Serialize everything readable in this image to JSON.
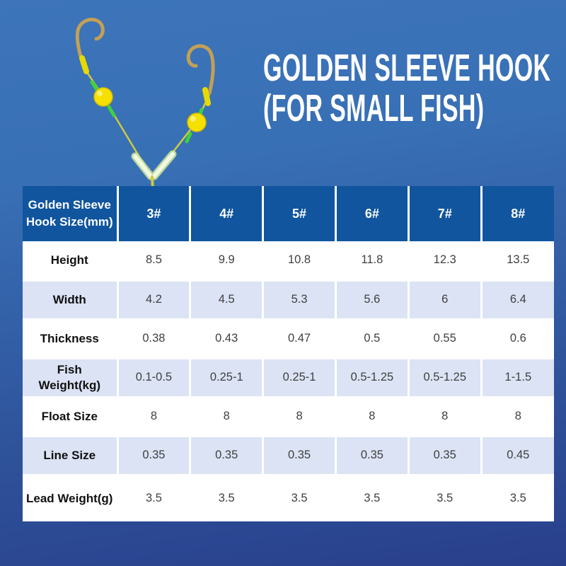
{
  "title": {
    "line1": "GOLDEN SLEEVE HOOK",
    "line2": "(FOR SMALL FISH)"
  },
  "illustration": {
    "description": "Two-hook golden sleeve fishing rig with yellow bait beads, green stops and luminous V tube"
  },
  "table": {
    "corner_label": "Golden Sleeve Hook Size(mm)",
    "columns": [
      "3#",
      "4#",
      "5#",
      "6#",
      "7#",
      "8#"
    ],
    "rows": [
      {
        "label": "Height",
        "values": [
          "8.5",
          "9.9",
          "10.8",
          "11.8",
          "12.3",
          "13.5"
        ]
      },
      {
        "label": "Width",
        "values": [
          "4.2",
          "4.5",
          "5.3",
          "5.6",
          "6",
          "6.4"
        ]
      },
      {
        "label": "Thickness",
        "values": [
          "0.38",
          "0.43",
          "0.47",
          "0.5",
          "0.55",
          "0.6"
        ]
      },
      {
        "label": "Fish Weight(kg)",
        "values": [
          "0.1-0.5",
          "0.25-1",
          "0.25-1",
          "0.5-1.25",
          "0.5-1.25",
          "1-1.5"
        ]
      },
      {
        "label": "Float Size",
        "values": [
          "8",
          "8",
          "8",
          "8",
          "8",
          "8"
        ]
      },
      {
        "label": "Line Size",
        "values": [
          "0.35",
          "0.35",
          "0.35",
          "0.35",
          "0.35",
          "0.45"
        ]
      },
      {
        "label": "Lead Weight(g)",
        "values": [
          "3.5",
          "3.5",
          "3.5",
          "3.5",
          "3.5",
          "3.5"
        ]
      }
    ]
  },
  "chart_data": {
    "type": "table",
    "title": "GOLDEN SLEEVE HOOK (FOR SMALL FISH)",
    "corner_label": "Golden Sleeve Hook Size(mm)",
    "columns": [
      "3#",
      "4#",
      "5#",
      "6#",
      "7#",
      "8#"
    ],
    "rows": [
      {
        "label": "Height",
        "values": [
          "8.5",
          "9.9",
          "10.8",
          "11.8",
          "12.3",
          "13.5"
        ]
      },
      {
        "label": "Width",
        "values": [
          "4.2",
          "4.5",
          "5.3",
          "5.6",
          "6",
          "6.4"
        ]
      },
      {
        "label": "Thickness",
        "values": [
          "0.38",
          "0.43",
          "0.47",
          "0.5",
          "0.55",
          "0.6"
        ]
      },
      {
        "label": "Fish Weight(kg)",
        "values": [
          "0.1-0.5",
          "0.25-1",
          "0.25-1",
          "0.5-1.25",
          "0.5-1.25",
          "1-1.5"
        ]
      },
      {
        "label": "Float Size",
        "values": [
          "8",
          "8",
          "8",
          "8",
          "8",
          "8"
        ]
      },
      {
        "label": "Line Size",
        "values": [
          "0.35",
          "0.35",
          "0.35",
          "0.35",
          "0.35",
          "0.45"
        ]
      },
      {
        "label": "Lead Weight(g)",
        "values": [
          "3.5",
          "3.5",
          "3.5",
          "3.5",
          "3.5",
          "3.5"
        ]
      }
    ]
  },
  "colors": {
    "bg_top": "#3d74ba",
    "bg_upper": "#3870b6",
    "bg_lower": "#2f549c",
    "bg_bottom": "#293f8c",
    "header_bg": "#10559e",
    "row_alt": "#dbe3f4",
    "row_white": "#ffffff",
    "divider": "#ffffff",
    "title_text": "#ffffff",
    "label_text": "#111111",
    "value_text": "#3f3f3f",
    "rig_hook": "#c2a055",
    "rig_line": "#cfca3d",
    "rig_sleeve": "#e6da00",
    "rig_stop": "#3cd23c",
    "rig_bead": "#f6e000",
    "rig_bead_edge": "#cfba00",
    "rig_glow_outer": "#cfe89e",
    "rig_glow_inner": "#f2f8e0"
  }
}
